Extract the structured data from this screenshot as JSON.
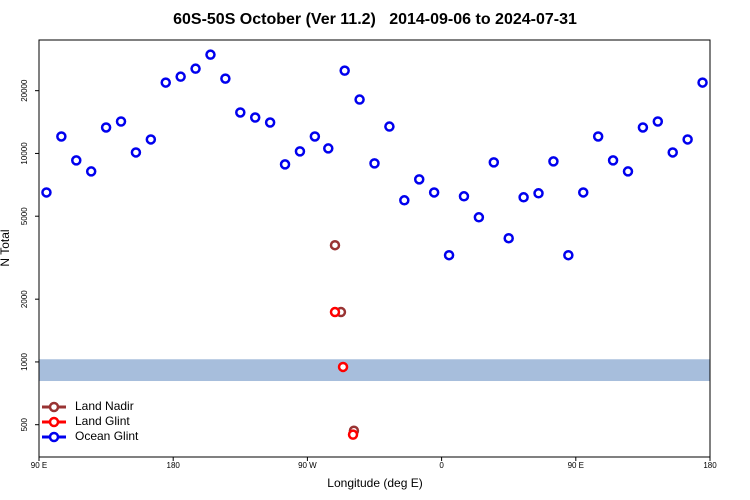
{
  "chart_data": {
    "type": "scatter",
    "title": "60S-50S October (Ver 11.2)   2014-09-06 to 2024-07-31",
    "x_label": "Longitude (deg E)",
    "y_label": "N Total",
    "xlim": [
      90,
      540
    ],
    "xticks": [
      {
        "value": 90,
        "label": "90 E"
      },
      180,
      {
        "value": 270,
        "label": "90 W"
      },
      {
        "value": 360,
        "label": "0"
      },
      {
        "value": 450,
        "label": "90 E"
      },
      {
        "value": 540,
        "label": "180"
      }
    ],
    "ylim": [
      350,
      35000
    ],
    "y_scale": "log",
    "yticks": [
      500,
      1000,
      2000,
      5000,
      10000,
      20000
    ],
    "band": [
      810,
      1030
    ],
    "band_color": "#a7bedc",
    "legend_position": "lower left",
    "series": [
      {
        "name": "Land Nadir",
        "color": "#993333",
        "x": [
          288.5,
          292.5,
          301.2
        ],
        "values": [
          3630,
          1735,
          468
        ]
      },
      {
        "name": "Land Glint",
        "color": "#ff0000",
        "x": [
          288.5,
          293.9,
          300.6
        ],
        "values": [
          1735,
          946,
          448
        ]
      },
      {
        "name": "Ocean Glint",
        "color": "#0000ee",
        "x": [
          95,
          105,
          115,
          125,
          135,
          145,
          155,
          165,
          175,
          185,
          195,
          205,
          215,
          225,
          235,
          245,
          255,
          265,
          275,
          284,
          295,
          305,
          315,
          325,
          335,
          345,
          355,
          365,
          375,
          385,
          395,
          405,
          415,
          425,
          435,
          445,
          455,
          465,
          475,
          485,
          495,
          505,
          515,
          525,
          535
        ],
        "values": [
          6500,
          12060,
          9260,
          8200,
          13320,
          14230,
          10110,
          11670,
          21870,
          23350,
          25500,
          29760,
          22850,
          15720,
          14870,
          14070,
          8860,
          10230,
          12060,
          10570,
          24950,
          18130,
          8960,
          13460,
          5960,
          7510,
          6500,
          3250,
          6230,
          4940,
          9060,
          3920,
          6160,
          6440,
          9160,
          3250,
          6500,
          12060,
          9260,
          8200,
          13320,
          14230,
          10110,
          11670,
          21870
        ]
      }
    ]
  }
}
